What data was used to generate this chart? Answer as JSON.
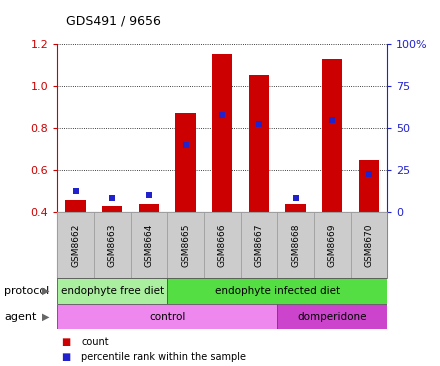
{
  "title": "GDS491 / 9656",
  "samples": [
    "GSM8662",
    "GSM8663",
    "GSM8664",
    "GSM8665",
    "GSM8666",
    "GSM8667",
    "GSM8668",
    "GSM8669",
    "GSM8670"
  ],
  "count_values": [
    0.46,
    0.43,
    0.44,
    0.87,
    1.15,
    1.05,
    0.44,
    1.13,
    0.65
  ],
  "percentile_values": [
    0.5,
    0.47,
    0.48,
    0.72,
    0.86,
    0.82,
    0.47,
    0.84,
    0.58
  ],
  "ylim": [
    0.4,
    1.2
  ],
  "y2lim": [
    0,
    100
  ],
  "yticks": [
    0.4,
    0.6,
    0.8,
    1.0,
    1.2
  ],
  "y2ticks": [
    0,
    25,
    50,
    75,
    100
  ],
  "y2ticklabels": [
    "0",
    "25",
    "50",
    "75",
    "100%"
  ],
  "bar_color": "#cc0000",
  "percentile_color": "#2222cc",
  "bar_width": 0.55,
  "protocol_groups": [
    {
      "label": "endophyte free diet",
      "start": 0,
      "end": 3,
      "color": "#aaeea0"
    },
    {
      "label": "endophyte infected diet",
      "start": 3,
      "end": 9,
      "color": "#55dd44"
    }
  ],
  "agent_groups": [
    {
      "label": "control",
      "start": 0,
      "end": 6,
      "color": "#ee88ee"
    },
    {
      "label": "domperidone",
      "start": 6,
      "end": 9,
      "color": "#cc44cc"
    }
  ],
  "legend_items": [
    {
      "label": "count",
      "color": "#cc0000"
    },
    {
      "label": "percentile rank within the sample",
      "color": "#2222cc"
    }
  ],
  "left_axis_color": "#cc0000",
  "right_axis_color": "#2222cc",
  "protocol_label": "protocol",
  "agent_label": "agent",
  "sample_box_color": "#cccccc",
  "sample_box_edge": "#999999"
}
